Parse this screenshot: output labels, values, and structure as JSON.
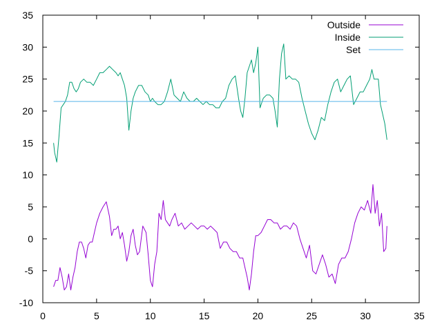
{
  "chart_data": {
    "type": "line",
    "title": "",
    "xlabel": "",
    "ylabel": "",
    "xlim": [
      0,
      35
    ],
    "ylim": [
      -10,
      35
    ],
    "x_ticks": [
      0,
      5,
      10,
      15,
      20,
      25,
      30,
      35
    ],
    "y_ticks": [
      -10,
      -5,
      0,
      5,
      10,
      15,
      20,
      25,
      30,
      35
    ],
    "x_tick_labels": [
      "0",
      "5",
      "10",
      "15",
      "20",
      "25",
      "30",
      "35"
    ],
    "y_tick_labels": [
      "-10",
      "-5",
      "0",
      "5",
      "10",
      "15",
      "20",
      "25",
      "30",
      "35"
    ],
    "grid": false,
    "legend_position": "top-right",
    "series": [
      {
        "name": "Outside",
        "color": "#9400d3",
        "x": [
          1.0,
          1.2,
          1.4,
          1.6,
          1.8,
          2.0,
          2.2,
          2.4,
          2.6,
          2.8,
          3.0,
          3.2,
          3.4,
          3.6,
          3.8,
          4.0,
          4.2,
          4.4,
          4.6,
          4.8,
          5.0,
          5.3,
          5.6,
          5.9,
          6.2,
          6.4,
          6.6,
          6.8,
          7.0,
          7.2,
          7.4,
          7.6,
          7.8,
          8.0,
          8.2,
          8.4,
          8.6,
          8.8,
          9.0,
          9.3,
          9.6,
          9.8,
          10.0,
          10.2,
          10.4,
          10.6,
          10.8,
          11.0,
          11.2,
          11.4,
          11.6,
          11.8,
          12.0,
          12.3,
          12.6,
          12.9,
          13.2,
          13.5,
          13.8,
          14.1,
          14.4,
          14.7,
          15.0,
          15.3,
          15.6,
          15.9,
          16.2,
          16.5,
          16.8,
          17.1,
          17.4,
          17.7,
          18.0,
          18.3,
          18.6,
          18.8,
          19.0,
          19.2,
          19.4,
          19.6,
          19.8,
          20.0,
          20.3,
          20.6,
          20.9,
          21.2,
          21.5,
          21.8,
          22.1,
          22.4,
          22.7,
          23.0,
          23.3,
          23.6,
          23.9,
          24.2,
          24.5,
          24.8,
          25.1,
          25.4,
          25.7,
          26.0,
          26.3,
          26.6,
          26.9,
          27.2,
          27.5,
          27.8,
          28.1,
          28.4,
          28.7,
          29.0,
          29.3,
          29.6,
          29.9,
          30.2,
          30.5,
          30.7,
          30.9,
          31.1,
          31.3,
          31.5,
          31.7,
          31.9,
          32.0
        ],
        "y": [
          -7.5,
          -6.5,
          -6.5,
          -4.5,
          -6.0,
          -8.0,
          -7.5,
          -5.5,
          -8.0,
          -6.0,
          -4.5,
          -2.0,
          -0.5,
          -0.5,
          -1.5,
          -3.0,
          -1.0,
          -0.5,
          -0.5,
          1.0,
          2.5,
          4.0,
          5.0,
          5.8,
          3.5,
          0.5,
          1.5,
          1.5,
          2.0,
          0.0,
          1.0,
          -1.0,
          -3.5,
          -2.0,
          0.5,
          1.5,
          -1.0,
          -2.5,
          -2.0,
          2.0,
          1.0,
          -2.5,
          -6.5,
          -7.5,
          -4.0,
          -2.0,
          4.0,
          3.0,
          6.0,
          3.0,
          2.5,
          2.0,
          3.0,
          4.0,
          2.0,
          2.5,
          1.5,
          2.0,
          2.5,
          2.0,
          1.5,
          2.0,
          2.0,
          1.5,
          2.0,
          1.5,
          1.0,
          -1.5,
          -0.5,
          -0.5,
          -1.5,
          -2.0,
          -2.0,
          -3.0,
          -3.0,
          -4.5,
          -6.0,
          -8.0,
          -5.5,
          -2.0,
          0.5,
          0.5,
          1.0,
          2.0,
          3.0,
          3.0,
          2.5,
          2.5,
          1.5,
          2.0,
          2.0,
          1.5,
          2.5,
          2.0,
          0.0,
          -1.5,
          -3.0,
          -1.0,
          -5.0,
          -5.5,
          -4.0,
          -2.5,
          -4.0,
          -6.0,
          -5.5,
          -7.0,
          -4.0,
          -3.0,
          -3.0,
          -2.0,
          0.0,
          2.5,
          4.0,
          5.0,
          4.5,
          6.0,
          4.0,
          8.5,
          4.0,
          6.0,
          2.0,
          4.0,
          -2.0,
          -1.5,
          2.0
        ]
      },
      {
        "name": "Inside",
        "color": "#009e73",
        "x": [
          1.0,
          1.1,
          1.3,
          1.5,
          1.7,
          1.9,
          2.1,
          2.3,
          2.5,
          2.7,
          2.9,
          3.1,
          3.3,
          3.5,
          3.8,
          4.1,
          4.4,
          4.7,
          5.0,
          5.3,
          5.6,
          5.9,
          6.2,
          6.5,
          6.8,
          7.0,
          7.2,
          7.4,
          7.6,
          7.8,
          8.0,
          8.2,
          8.4,
          8.6,
          8.9,
          9.2,
          9.5,
          9.8,
          10.0,
          10.2,
          10.4,
          10.7,
          11.0,
          11.3,
          11.6,
          11.9,
          12.2,
          12.5,
          12.8,
          13.1,
          13.4,
          13.7,
          14.0,
          14.3,
          14.6,
          14.9,
          15.2,
          15.5,
          15.8,
          16.1,
          16.4,
          16.7,
          17.0,
          17.3,
          17.6,
          17.9,
          18.2,
          18.4,
          18.6,
          18.8,
          19.0,
          19.2,
          19.4,
          19.6,
          19.8,
          20.0,
          20.2,
          20.5,
          20.8,
          21.1,
          21.4,
          21.6,
          21.8,
          22.0,
          22.2,
          22.4,
          22.6,
          22.9,
          23.2,
          23.5,
          23.8,
          24.1,
          24.4,
          24.7,
          25.0,
          25.3,
          25.6,
          25.9,
          26.2,
          26.5,
          26.8,
          27.1,
          27.4,
          27.7,
          28.0,
          28.3,
          28.6,
          28.9,
          29.2,
          29.5,
          29.8,
          30.1,
          30.4,
          30.6,
          30.8,
          31.0,
          31.2,
          31.4,
          31.6,
          31.8,
          32.0
        ],
        "y": [
          15.0,
          13.5,
          12.0,
          16.0,
          20.5,
          21.0,
          21.5,
          22.5,
          24.5,
          24.5,
          23.5,
          23.0,
          23.5,
          24.5,
          25.0,
          24.5,
          24.5,
          24.0,
          25.0,
          26.0,
          26.0,
          26.5,
          27.0,
          26.5,
          26.0,
          25.5,
          26.0,
          25.0,
          24.0,
          22.0,
          17.0,
          20.0,
          22.0,
          23.0,
          24.0,
          24.0,
          23.0,
          22.5,
          21.5,
          22.0,
          21.5,
          21.0,
          21.0,
          21.5,
          23.0,
          25.0,
          22.5,
          22.0,
          21.5,
          23.0,
          22.0,
          21.5,
          21.5,
          22.0,
          21.5,
          21.0,
          21.5,
          21.0,
          21.0,
          20.5,
          20.5,
          21.5,
          22.0,
          24.0,
          25.0,
          25.5,
          22.0,
          20.0,
          19.0,
          22.0,
          26.0,
          27.0,
          28.0,
          26.0,
          27.5,
          30.0,
          20.5,
          22.0,
          22.5,
          22.5,
          22.0,
          20.0,
          17.5,
          25.0,
          29.0,
          30.5,
          25.0,
          25.5,
          25.0,
          25.0,
          24.5,
          22.0,
          20.0,
          18.0,
          16.5,
          15.5,
          17.0,
          19.0,
          18.5,
          21.0,
          23.0,
          24.5,
          25.0,
          23.0,
          24.0,
          25.0,
          25.5,
          21.0,
          22.0,
          23.0,
          23.0,
          24.0,
          25.0,
          26.5,
          25.0,
          25.0,
          25.0,
          21.0,
          19.5,
          18.0,
          15.5
        ]
      },
      {
        "name": "Set",
        "color": "#56b4e9",
        "x": [
          1.0,
          32.0
        ],
        "y": [
          21.5,
          21.5
        ]
      }
    ]
  }
}
